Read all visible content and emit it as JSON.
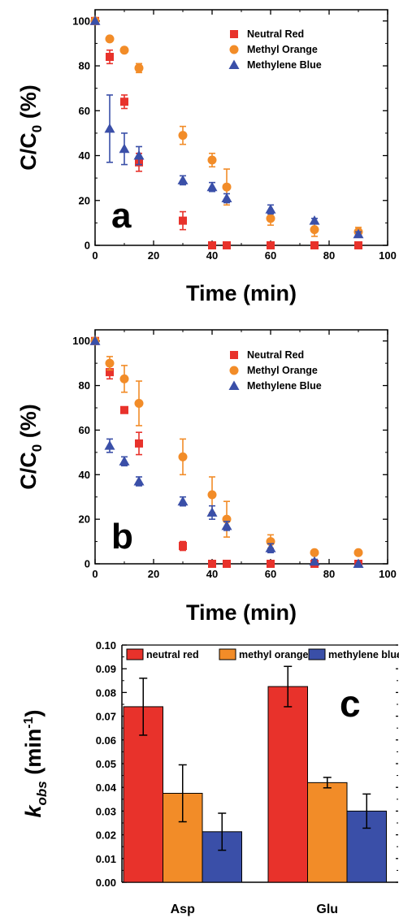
{
  "chart_data": [
    {
      "panel_label": "a",
      "type": "scatter",
      "xlabel": "Time (min)",
      "ylabel": "C/C",
      "ylabel_sub": "0",
      "ylabel_suffix": " (%)",
      "xlim": [
        0,
        100
      ],
      "ylim": [
        0,
        105
      ],
      "xticks": [
        "0",
        "20",
        "40",
        "60",
        "80",
        "100"
      ],
      "yticks": [
        "0",
        "20",
        "40",
        "60",
        "80",
        "100"
      ],
      "grid": false,
      "legend_placement": "top-right",
      "series": [
        {
          "name": "Neutral Red",
          "marker": "square",
          "color": "#e8322b",
          "x": [
            0,
            5,
            10,
            15,
            30,
            40,
            45,
            60,
            75,
            90
          ],
          "y": [
            100,
            84,
            64,
            37,
            11,
            0,
            0,
            0,
            0,
            0
          ],
          "err": [
            0,
            3,
            3,
            4,
            4,
            0,
            0,
            0,
            0,
            0
          ]
        },
        {
          "name": "Methyl Orange",
          "marker": "circle",
          "color": "#f28c28",
          "x": [
            0,
            5,
            10,
            15,
            30,
            40,
            45,
            60,
            75,
            90
          ],
          "y": [
            100,
            92,
            87,
            79,
            49,
            38,
            26,
            12,
            7,
            6
          ],
          "err": [
            0,
            1,
            1,
            2,
            4,
            3,
            8,
            3,
            3,
            2
          ]
        },
        {
          "name": "Methylene Blue",
          "marker": "triangle",
          "color": "#3a4fa8",
          "x": [
            0,
            5,
            10,
            15,
            30,
            40,
            45,
            60,
            75,
            90
          ],
          "y": [
            100,
            52,
            43,
            40,
            29,
            26,
            21,
            16,
            11,
            5
          ],
          "err": [
            0,
            15,
            7,
            4,
            2,
            2,
            2,
            2,
            1,
            1
          ]
        }
      ]
    },
    {
      "panel_label": "b",
      "type": "scatter",
      "xlabel": "Time (min)",
      "ylabel": "C/C",
      "ylabel_sub": "0",
      "ylabel_suffix": " (%)",
      "xlim": [
        0,
        100
      ],
      "ylim": [
        0,
        105
      ],
      "xticks": [
        "0",
        "20",
        "40",
        "60",
        "80",
        "100"
      ],
      "yticks": [
        "0",
        "20",
        "40",
        "60",
        "80",
        "100"
      ],
      "grid": false,
      "legend_placement": "top-right",
      "series": [
        {
          "name": "Neutral Red",
          "marker": "square",
          "color": "#e8322b",
          "x": [
            0,
            5,
            10,
            15,
            30,
            40,
            45,
            60,
            75,
            90
          ],
          "y": [
            100,
            86,
            69,
            54,
            8,
            0,
            0,
            0,
            0,
            0
          ],
          "err": [
            0,
            3,
            1,
            5,
            2,
            0,
            0,
            0,
            0,
            0
          ]
        },
        {
          "name": "Methyl Orange",
          "marker": "circle",
          "color": "#f28c28",
          "x": [
            0,
            5,
            10,
            15,
            30,
            40,
            45,
            60,
            75,
            90
          ],
          "y": [
            100,
            90,
            83,
            72,
            48,
            31,
            20,
            10,
            5,
            5
          ],
          "err": [
            0,
            3,
            6,
            10,
            8,
            8,
            8,
            3,
            1,
            1
          ]
        },
        {
          "name": "Methylene Blue",
          "marker": "triangle",
          "color": "#3a4fa8",
          "x": [
            0,
            5,
            10,
            15,
            30,
            40,
            45,
            60,
            75,
            90
          ],
          "y": [
            100,
            53,
            46,
            37,
            28,
            23,
            17,
            7,
            1,
            0
          ],
          "err": [
            0,
            3,
            2,
            2,
            2,
            3,
            2,
            2,
            1,
            0
          ]
        }
      ]
    },
    {
      "panel_label": "c",
      "type": "bar",
      "categories": [
        "Asp",
        "Glu"
      ],
      "ylabel_main": "k",
      "ylabel_sub": "obs",
      "ylabel_unit": " (min",
      "ylabel_sup": "-1",
      "ylabel_close": ")",
      "ylim": [
        0,
        0.1
      ],
      "yticks": [
        "0.00",
        "0.01",
        "0.02",
        "0.03",
        "0.04",
        "0.05",
        "0.06",
        "0.07",
        "0.08",
        "0.09",
        "0.10"
      ],
      "grid": false,
      "legend_placement": "top",
      "series": [
        {
          "name": "neutral red",
          "color": "#e8322b",
          "values": [
            0.074,
            0.0825
          ],
          "err": [
            0.012,
            0.0085
          ]
        },
        {
          "name": "methyl orange",
          "color": "#f28c28",
          "values": [
            0.0375,
            0.042
          ],
          "err": [
            0.012,
            0.0022
          ]
        },
        {
          "name": "methylene blue",
          "color": "#3a4fa8",
          "values": [
            0.0213,
            0.03
          ],
          "err": [
            0.0078,
            0.0072
          ]
        }
      ]
    }
  ]
}
